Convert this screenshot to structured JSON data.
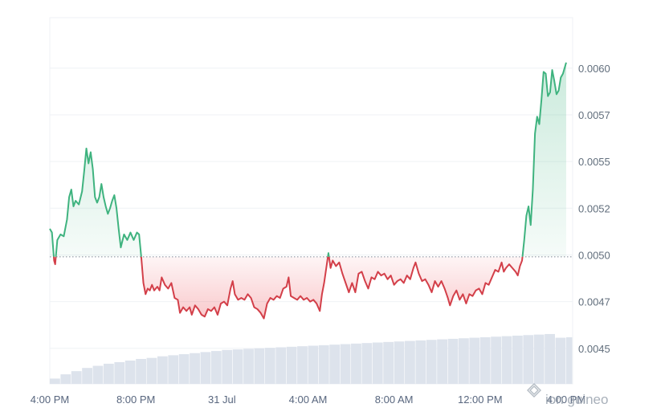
{
  "chart_data": {
    "type": "line",
    "baseline": 0.00499,
    "ylim": [
      0.00431,
      0.00627
    ],
    "y_ticks": [
      "0.0045",
      "0.0047",
      "0.0050",
      "0.0052",
      "0.0055",
      "0.0057",
      "0.0060"
    ],
    "y_tick_values": [
      0.0045,
      0.00475,
      0.005,
      0.00525,
      0.0055,
      0.00575,
      0.006
    ],
    "x_ticks": [
      "4:00 PM",
      "8:00 PM",
      "31 Jul",
      "4:00 AM",
      "8:00 AM",
      "12:00 PM",
      "4:00 PM"
    ],
    "x_tick_values": [
      0,
      4,
      8,
      12,
      16,
      20,
      24
    ],
    "xlim": [
      0,
      24.3
    ],
    "colors": {
      "up_line": "#3fb37f",
      "down_line": "#d33f49",
      "up_fill": "#3fb37f",
      "down_fill": "#ea3943",
      "baseline": "#8e96a3",
      "volume": "#dde3ec",
      "grid": "#eff2f5"
    },
    "series": [
      {
        "values": [
          [
            0.0,
            0.00514
          ],
          [
            0.1,
            0.00512
          ],
          [
            0.2,
            0.00497
          ],
          [
            0.25,
            0.00495
          ],
          [
            0.35,
            0.00508
          ],
          [
            0.5,
            0.00511
          ],
          [
            0.65,
            0.0051
          ],
          [
            0.8,
            0.00519
          ],
          [
            0.9,
            0.00531
          ],
          [
            1.0,
            0.00535
          ],
          [
            1.1,
            0.00526
          ],
          [
            1.2,
            0.00529
          ],
          [
            1.35,
            0.00527
          ],
          [
            1.5,
            0.00534
          ],
          [
            1.6,
            0.00545
          ],
          [
            1.7,
            0.00557
          ],
          [
            1.8,
            0.00549
          ],
          [
            1.9,
            0.00555
          ],
          [
            2.0,
            0.00546
          ],
          [
            2.1,
            0.00531
          ],
          [
            2.2,
            0.00528
          ],
          [
            2.3,
            0.00531
          ],
          [
            2.4,
            0.00538
          ],
          [
            2.5,
            0.00531
          ],
          [
            2.6,
            0.00526
          ],
          [
            2.7,
            0.00522
          ],
          [
            2.8,
            0.00525
          ],
          [
            2.9,
            0.00529
          ],
          [
            3.0,
            0.00532
          ],
          [
            3.1,
            0.00525
          ],
          [
            3.2,
            0.00514
          ],
          [
            3.3,
            0.00504
          ],
          [
            3.45,
            0.00511
          ],
          [
            3.6,
            0.00508
          ],
          [
            3.75,
            0.00512
          ],
          [
            3.9,
            0.00508
          ],
          [
            4.05,
            0.00512
          ],
          [
            4.15,
            0.00511
          ],
          [
            4.25,
            0.00499
          ],
          [
            4.35,
            0.00485
          ],
          [
            4.45,
            0.00479
          ],
          [
            4.55,
            0.00482
          ],
          [
            4.65,
            0.00481
          ],
          [
            4.75,
            0.00484
          ],
          [
            4.85,
            0.00481
          ],
          [
            5.0,
            0.00483
          ],
          [
            5.1,
            0.00481
          ],
          [
            5.2,
            0.00488
          ],
          [
            5.35,
            0.00484
          ],
          [
            5.5,
            0.00482
          ],
          [
            5.65,
            0.00485
          ],
          [
            5.8,
            0.00477
          ],
          [
            5.95,
            0.00476
          ],
          [
            6.05,
            0.00469
          ],
          [
            6.2,
            0.00472
          ],
          [
            6.35,
            0.0047
          ],
          [
            6.5,
            0.00472
          ],
          [
            6.6,
            0.00468
          ],
          [
            6.75,
            0.00473
          ],
          [
            6.9,
            0.00471
          ],
          [
            7.05,
            0.00468
          ],
          [
            7.2,
            0.00467
          ],
          [
            7.35,
            0.00471
          ],
          [
            7.5,
            0.0047
          ],
          [
            7.65,
            0.00472
          ],
          [
            7.8,
            0.00468
          ],
          [
            7.95,
            0.00474
          ],
          [
            8.1,
            0.00475
          ],
          [
            8.25,
            0.00473
          ],
          [
            8.4,
            0.00482
          ],
          [
            8.5,
            0.00486
          ],
          [
            8.6,
            0.00479
          ],
          [
            8.75,
            0.00476
          ],
          [
            8.9,
            0.00477
          ],
          [
            9.05,
            0.00476
          ],
          [
            9.2,
            0.00479
          ],
          [
            9.35,
            0.00477
          ],
          [
            9.5,
            0.00472
          ],
          [
            9.65,
            0.00471
          ],
          [
            9.8,
            0.00469
          ],
          [
            9.95,
            0.00466
          ],
          [
            10.1,
            0.00474
          ],
          [
            10.25,
            0.00477
          ],
          [
            10.4,
            0.00476
          ],
          [
            10.55,
            0.00478
          ],
          [
            10.7,
            0.00477
          ],
          [
            10.85,
            0.00482
          ],
          [
            11.0,
            0.00483
          ],
          [
            11.1,
            0.00488
          ],
          [
            11.2,
            0.00478
          ],
          [
            11.35,
            0.00477
          ],
          [
            11.5,
            0.00476
          ],
          [
            11.65,
            0.00478
          ],
          [
            11.8,
            0.00476
          ],
          [
            11.95,
            0.00477
          ],
          [
            12.1,
            0.00475
          ],
          [
            12.25,
            0.00476
          ],
          [
            12.4,
            0.00474
          ],
          [
            12.55,
            0.0047
          ],
          [
            12.65,
            0.00479
          ],
          [
            12.75,
            0.00485
          ],
          [
            12.85,
            0.00493
          ],
          [
            12.95,
            0.00501
          ],
          [
            13.05,
            0.00493
          ],
          [
            13.15,
            0.00497
          ],
          [
            13.3,
            0.00494
          ],
          [
            13.45,
            0.00496
          ],
          [
            13.6,
            0.0049
          ],
          [
            13.75,
            0.00485
          ],
          [
            13.9,
            0.0048
          ],
          [
            14.05,
            0.00485
          ],
          [
            14.2,
            0.0048
          ],
          [
            14.35,
            0.0049
          ],
          [
            14.5,
            0.00491
          ],
          [
            14.65,
            0.00486
          ],
          [
            14.8,
            0.00482
          ],
          [
            14.95,
            0.00488
          ],
          [
            15.1,
            0.00487
          ],
          [
            15.25,
            0.00491
          ],
          [
            15.4,
            0.00489
          ],
          [
            15.55,
            0.0049
          ],
          [
            15.7,
            0.00487
          ],
          [
            15.85,
            0.00489
          ],
          [
            16.0,
            0.00484
          ],
          [
            16.15,
            0.00486
          ],
          [
            16.3,
            0.00487
          ],
          [
            16.45,
            0.00485
          ],
          [
            16.6,
            0.00489
          ],
          [
            16.75,
            0.00487
          ],
          [
            16.9,
            0.00493
          ],
          [
            17.0,
            0.00496
          ],
          [
            17.15,
            0.0049
          ],
          [
            17.3,
            0.00486
          ],
          [
            17.45,
            0.00487
          ],
          [
            17.6,
            0.00484
          ],
          [
            17.75,
            0.0048
          ],
          [
            17.9,
            0.00486
          ],
          [
            18.05,
            0.00483
          ],
          [
            18.2,
            0.00486
          ],
          [
            18.35,
            0.00482
          ],
          [
            18.5,
            0.00477
          ],
          [
            18.6,
            0.00473
          ],
          [
            18.75,
            0.00478
          ],
          [
            18.9,
            0.00481
          ],
          [
            19.05,
            0.00476
          ],
          [
            19.2,
            0.00479
          ],
          [
            19.35,
            0.00474
          ],
          [
            19.5,
            0.00479
          ],
          [
            19.65,
            0.00478
          ],
          [
            19.8,
            0.00481
          ],
          [
            19.95,
            0.00482
          ],
          [
            20.1,
            0.00479
          ],
          [
            20.25,
            0.00485
          ],
          [
            20.4,
            0.00484
          ],
          [
            20.55,
            0.00488
          ],
          [
            20.7,
            0.00492
          ],
          [
            20.85,
            0.00491
          ],
          [
            21.0,
            0.00496
          ],
          [
            21.1,
            0.00491
          ],
          [
            21.2,
            0.00493
          ],
          [
            21.35,
            0.00495
          ],
          [
            21.5,
            0.00493
          ],
          [
            21.65,
            0.00491
          ],
          [
            21.75,
            0.00489
          ],
          [
            21.85,
            0.00494
          ],
          [
            21.95,
            0.00497
          ],
          [
            22.05,
            0.00508
          ],
          [
            22.15,
            0.00521
          ],
          [
            22.25,
            0.00526
          ],
          [
            22.35,
            0.00516
          ],
          [
            22.45,
            0.00535
          ],
          [
            22.55,
            0.00565
          ],
          [
            22.65,
            0.00574
          ],
          [
            22.75,
            0.0057
          ],
          [
            22.85,
            0.00583
          ],
          [
            22.95,
            0.00598
          ],
          [
            23.05,
            0.00597
          ],
          [
            23.15,
            0.00585
          ],
          [
            23.25,
            0.00587
          ],
          [
            23.35,
            0.00599
          ],
          [
            23.45,
            0.00593
          ],
          [
            23.55,
            0.00586
          ],
          [
            23.65,
            0.00588
          ],
          [
            23.75,
            0.00595
          ],
          [
            23.85,
            0.00597
          ],
          [
            24.0,
            0.00603
          ]
        ]
      }
    ],
    "volume": [
      [
        0.0,
        0.1
      ],
      [
        0.5,
        0.18
      ],
      [
        1.0,
        0.24
      ],
      [
        1.5,
        0.3
      ],
      [
        2.0,
        0.34
      ],
      [
        2.5,
        0.38
      ],
      [
        3.0,
        0.41
      ],
      [
        3.5,
        0.44
      ],
      [
        4.0,
        0.47
      ],
      [
        4.5,
        0.49
      ],
      [
        5.0,
        0.52
      ],
      [
        5.5,
        0.54
      ],
      [
        6.0,
        0.56
      ],
      [
        6.5,
        0.58
      ],
      [
        7.0,
        0.6
      ],
      [
        7.5,
        0.62
      ],
      [
        8.0,
        0.64
      ],
      [
        8.5,
        0.65
      ],
      [
        9.0,
        0.66
      ],
      [
        9.5,
        0.67
      ],
      [
        10.0,
        0.68
      ],
      [
        10.5,
        0.69
      ],
      [
        11.0,
        0.7
      ],
      [
        11.5,
        0.71
      ],
      [
        12.0,
        0.72
      ],
      [
        12.5,
        0.73
      ],
      [
        13.0,
        0.74
      ],
      [
        13.5,
        0.75
      ],
      [
        14.0,
        0.76
      ],
      [
        14.5,
        0.77
      ],
      [
        15.0,
        0.78
      ],
      [
        15.5,
        0.79
      ],
      [
        16.0,
        0.8
      ],
      [
        16.5,
        0.81
      ],
      [
        17.0,
        0.82
      ],
      [
        17.5,
        0.83
      ],
      [
        18.0,
        0.84
      ],
      [
        18.5,
        0.85
      ],
      [
        19.0,
        0.86
      ],
      [
        19.5,
        0.87
      ],
      [
        20.0,
        0.88
      ],
      [
        20.5,
        0.89
      ],
      [
        21.0,
        0.9
      ],
      [
        21.5,
        0.91
      ],
      [
        22.0,
        0.92
      ],
      [
        22.5,
        0.93
      ],
      [
        23.0,
        0.94
      ],
      [
        23.5,
        0.87
      ],
      [
        24.0,
        0.88
      ]
    ]
  },
  "watermark": "ion guineo"
}
